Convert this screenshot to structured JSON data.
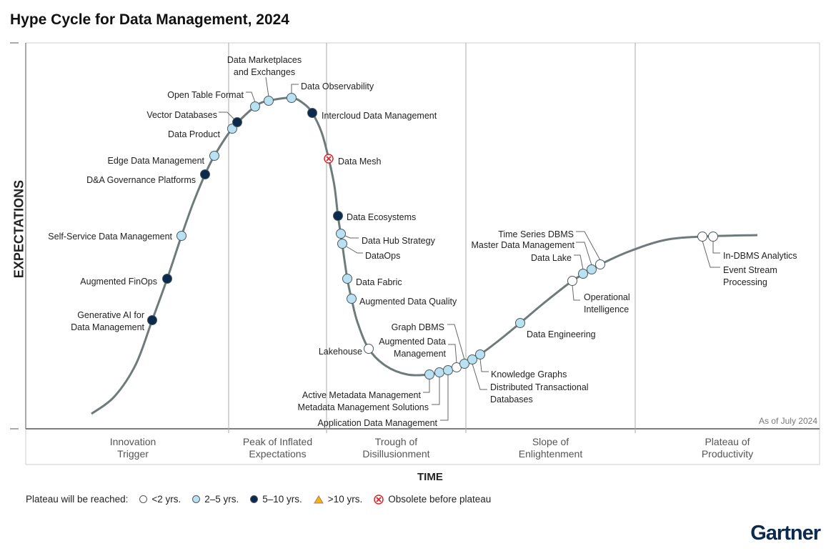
{
  "title": "Hype Cycle for Data Management, 2024",
  "y_axis": "EXPECTATIONS",
  "x_axis": "TIME",
  "as_of": "As of July 2024",
  "brand": "Gartner",
  "colors": {
    "lt2": "#ffffff",
    "2to5": "#b9e1f1",
    "5to10": "#0c2a4e",
    "gt10": "#f5b400",
    "obsolete": "#d9262b",
    "curve": "#6e7b7b"
  },
  "phases": [
    {
      "lines": [
        "Innovation",
        "Trigger"
      ]
    },
    {
      "lines": [
        "Peak of Inflated",
        "Expectations"
      ]
    },
    {
      "lines": [
        "Trough of",
        "Disillusionment"
      ]
    },
    {
      "lines": [
        "Slope of",
        "Enlightenment"
      ]
    },
    {
      "lines": [
        "Plateau of",
        "Productivity"
      ]
    }
  ],
  "legend": {
    "label": "Plateau will be reached:",
    "items": [
      {
        "key": "lt2",
        "label": "<2 yrs."
      },
      {
        "key": "2to5",
        "label": "2–5 yrs."
      },
      {
        "key": "5to10",
        "label": "5–10 yrs."
      },
      {
        "key": "gt10",
        "label": ">10 yrs."
      },
      {
        "key": "obsolete",
        "label": "Obsolete before plateau"
      }
    ]
  },
  "items": [
    {
      "name": [
        "Generative AI for",
        "Data Management"
      ],
      "plateau": "5to10"
    },
    {
      "name": [
        "Augmented FinOps"
      ],
      "plateau": "5to10"
    },
    {
      "name": [
        "Self-Service Data Management"
      ],
      "plateau": "2to5"
    },
    {
      "name": [
        "D&A Governance Platforms"
      ],
      "plateau": "5to10"
    },
    {
      "name": [
        "Edge Data Management"
      ],
      "plateau": "2to5"
    },
    {
      "name": [
        "Data Product"
      ],
      "plateau": "2to5"
    },
    {
      "name": [
        "Vector Databases"
      ],
      "plateau": "5to10"
    },
    {
      "name": [
        "Open Table Format"
      ],
      "plateau": "2to5"
    },
    {
      "name": [
        "Data Marketplaces",
        "and Exchanges"
      ],
      "plateau": "2to5"
    },
    {
      "name": [
        "Data Observability"
      ],
      "plateau": "2to5"
    },
    {
      "name": [
        "Intercloud Data Management"
      ],
      "plateau": "5to10"
    },
    {
      "name": [
        "Data Mesh"
      ],
      "plateau": "obsolete"
    },
    {
      "name": [
        "Data Ecosystems"
      ],
      "plateau": "5to10"
    },
    {
      "name": [
        "Data Hub Strategy"
      ],
      "plateau": "2to5"
    },
    {
      "name": [
        "DataOps"
      ],
      "plateau": "2to5"
    },
    {
      "name": [
        "Data Fabric"
      ],
      "plateau": "2to5"
    },
    {
      "name": [
        "Augmented Data Quality"
      ],
      "plateau": "2to5"
    },
    {
      "name": [
        "Lakehouse"
      ],
      "plateau": "lt2"
    },
    {
      "name": [
        "Active Metadata Management"
      ],
      "plateau": "2to5"
    },
    {
      "name": [
        "Metadata Management Solutions"
      ],
      "plateau": "2to5"
    },
    {
      "name": [
        "Application Data Management"
      ],
      "plateau": "2to5"
    },
    {
      "name": [
        "Augmented Data",
        "Management"
      ],
      "plateau": "lt2"
    },
    {
      "name": [
        "Graph DBMS"
      ],
      "plateau": "2to5"
    },
    {
      "name": [
        "Distributed Transactional",
        "Databases"
      ],
      "plateau": "2to5"
    },
    {
      "name": [
        "Knowledge Graphs"
      ],
      "plateau": "2to5"
    },
    {
      "name": [
        "Data Engineering"
      ],
      "plateau": "2to5"
    },
    {
      "name": [
        "Operational",
        "Intelligence"
      ],
      "plateau": "lt2"
    },
    {
      "name": [
        "Data Lake"
      ],
      "plateau": "2to5"
    },
    {
      "name": [
        "Master Data Management"
      ],
      "plateau": "2to5"
    },
    {
      "name": [
        "Time Series DBMS"
      ],
      "plateau": "lt2"
    },
    {
      "name": [
        "In-DBMS Analytics"
      ],
      "plateau": "lt2"
    },
    {
      "name": [
        "Event Stream",
        "Processing"
      ],
      "plateau": "lt2"
    }
  ]
}
